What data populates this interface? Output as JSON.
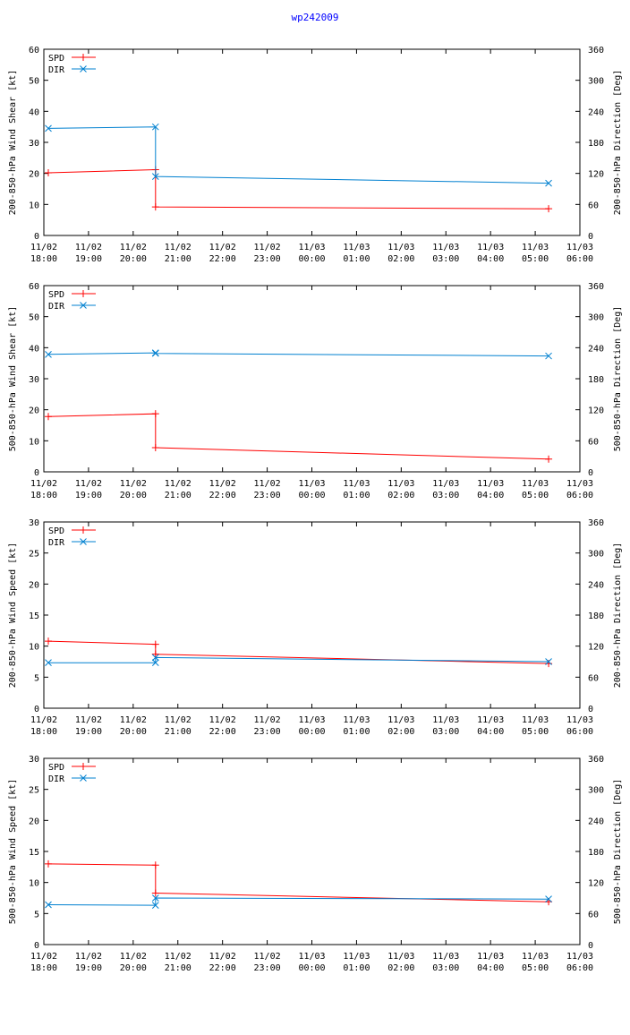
{
  "figure_title": "wp242009",
  "colors": {
    "spd": "#ff0000",
    "dir": "#0080d0",
    "frame": "#000000",
    "title": "#0000ff"
  },
  "chart_data": [
    {
      "type": "line",
      "ylabel": "200-850-hPa Wind Shear [kt]",
      "y2label": "200-850-hPa Direction [Deg]",
      "ylim": [
        0,
        60
      ],
      "yticks": [
        0,
        10,
        20,
        30,
        40,
        50,
        60
      ],
      "y2lim": [
        0,
        360
      ],
      "y2ticks": [
        0,
        60,
        120,
        180,
        240,
        300,
        360
      ],
      "xlim": [
        "2009-11-02 18:00",
        "2009-11-03 06:00"
      ],
      "xticks": [
        "11/02\n18:00",
        "11/02\n19:00",
        "11/02\n20:00",
        "11/02\n21:00",
        "11/02\n22:00",
        "11/02\n23:00",
        "11/03\n00:00",
        "11/03\n01:00",
        "11/03\n02:00",
        "11/03\n03:00",
        "11/03\n04:00",
        "11/03\n05:00",
        "11/03\n06:00"
      ],
      "legend": "top-left",
      "grid": false,
      "series": [
        {
          "name": "SPD",
          "axis": "left",
          "x": [
            "2009-11-02 18:06",
            "2009-11-02 20:30",
            "2009-11-02 20:30",
            "2009-11-03 05:18"
          ],
          "values": [
            20.2,
            21.2,
            9.2,
            8.6
          ]
        },
        {
          "name": "DIR",
          "axis": "right",
          "x": [
            "2009-11-02 18:06",
            "2009-11-02 20:30",
            "2009-11-02 20:30",
            "2009-11-03 05:18"
          ],
          "values": [
            207,
            210,
            114,
            101
          ]
        }
      ]
    },
    {
      "type": "line",
      "ylabel": "500-850-hPa Wind Shear [kt]",
      "y2label": "500-850-hPa Direction [Deg]",
      "ylim": [
        0,
        60
      ],
      "yticks": [
        0,
        10,
        20,
        30,
        40,
        50,
        60
      ],
      "y2lim": [
        0,
        360
      ],
      "y2ticks": [
        0,
        60,
        120,
        180,
        240,
        300,
        360
      ],
      "xlim": [
        "2009-11-02 18:00",
        "2009-11-03 06:00"
      ],
      "xticks": [
        "11/02\n18:00",
        "11/02\n19:00",
        "11/02\n20:00",
        "11/02\n21:00",
        "11/02\n22:00",
        "11/02\n23:00",
        "11/03\n00:00",
        "11/03\n01:00",
        "11/03\n02:00",
        "11/03\n03:00",
        "11/03\n04:00",
        "11/03\n05:00",
        "11/03\n06:00"
      ],
      "legend": "top-left",
      "grid": false,
      "series": [
        {
          "name": "SPD",
          "axis": "left",
          "x": [
            "2009-11-02 18:06",
            "2009-11-02 20:30",
            "2009-11-02 20:30",
            "2009-11-03 05:18"
          ],
          "values": [
            17.8,
            18.7,
            7.8,
            4.1
          ]
        },
        {
          "name": "DIR",
          "axis": "right",
          "x": [
            "2009-11-02 18:06",
            "2009-11-02 20:30",
            "2009-11-02 20:30",
            "2009-11-03 05:18"
          ],
          "values": [
            227,
            230,
            229,
            224
          ]
        }
      ]
    },
    {
      "type": "line",
      "ylabel": "200-850-hPa Wind Speed [kt]",
      "y2label": "200-850-hPa Direction [Deg]",
      "ylim": [
        0,
        30
      ],
      "yticks": [
        0,
        5,
        10,
        15,
        20,
        25,
        30
      ],
      "y2lim": [
        0,
        360
      ],
      "y2ticks": [
        0,
        60,
        120,
        180,
        240,
        300,
        360
      ],
      "xlim": [
        "2009-11-02 18:00",
        "2009-11-03 06:00"
      ],
      "xticks": [
        "11/02\n18:00",
        "11/02\n19:00",
        "11/02\n20:00",
        "11/02\n21:00",
        "11/02\n22:00",
        "11/02\n23:00",
        "11/03\n00:00",
        "11/03\n01:00",
        "11/03\n02:00",
        "11/03\n03:00",
        "11/03\n04:00",
        "11/03\n05:00",
        "11/03\n06:00"
      ],
      "legend": "top-left",
      "grid": false,
      "series": [
        {
          "name": "SPD",
          "axis": "left",
          "x": [
            "2009-11-02 18:06",
            "2009-11-02 20:30",
            "2009-11-02 20:30",
            "2009-11-03 05:18"
          ],
          "values": [
            10.8,
            10.3,
            8.7,
            7.2
          ]
        },
        {
          "name": "DIR",
          "axis": "right",
          "x": [
            "2009-11-02 18:06",
            "2009-11-02 20:30",
            "2009-11-02 20:30",
            "2009-11-03 05:18"
          ],
          "values": [
            88,
            88,
            98,
            90
          ]
        }
      ]
    },
    {
      "type": "line",
      "ylabel": "500-850-hPa Wind Speed [kt]",
      "y2label": "500-850-hPa Direction [Deg]",
      "ylim": [
        0,
        30
      ],
      "yticks": [
        0,
        5,
        10,
        15,
        20,
        25,
        30
      ],
      "y2lim": [
        0,
        360
      ],
      "y2ticks": [
        0,
        60,
        120,
        180,
        240,
        300,
        360
      ],
      "xlim": [
        "2009-11-02 18:00",
        "2009-11-03 06:00"
      ],
      "xticks": [
        "11/02\n18:00",
        "11/02\n19:00",
        "11/02\n20:00",
        "11/02\n21:00",
        "11/02\n22:00",
        "11/02\n23:00",
        "11/03\n00:00",
        "11/03\n01:00",
        "11/03\n02:00",
        "11/03\n03:00",
        "11/03\n04:00",
        "11/03\n05:00",
        "11/03\n06:00"
      ],
      "legend": "top-left",
      "grid": false,
      "series": [
        {
          "name": "SPD",
          "axis": "left",
          "x": [
            "2009-11-02 18:06",
            "2009-11-02 20:30",
            "2009-11-02 20:30",
            "2009-11-03 05:18"
          ],
          "values": [
            13.0,
            12.8,
            8.3,
            6.9
          ]
        },
        {
          "name": "DIR",
          "axis": "right",
          "x": [
            "2009-11-02 18:06",
            "2009-11-02 20:30",
            "2009-11-02 20:30",
            "2009-11-03 05:18"
          ],
          "values": [
            77,
            76,
            90,
            88
          ]
        }
      ]
    }
  ]
}
